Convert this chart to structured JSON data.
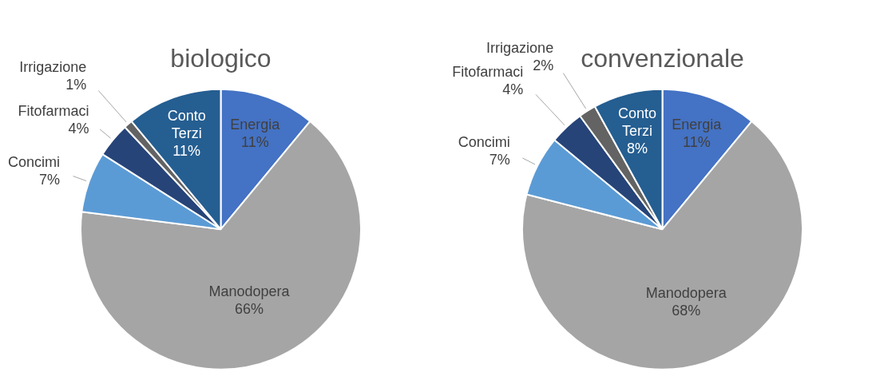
{
  "chart_data": [
    {
      "type": "pie",
      "title": "biologico",
      "categories": [
        "Energia",
        "Manodopera",
        "Concimi",
        "Fitofarmaci",
        "Irrigazione",
        "Conto Terzi"
      ],
      "values": [
        11,
        66,
        7,
        4,
        1,
        11
      ],
      "value_labels": [
        "11%",
        "66%",
        "7%",
        "4%",
        "1%",
        "11%"
      ],
      "colors": [
        "#4472c4",
        "#a5a5a5",
        "#5b9bd5",
        "#264478",
        "#636363",
        "#255e91"
      ],
      "legend": false
    },
    {
      "type": "pie",
      "title": "convenzionale",
      "categories": [
        "Energia",
        "Manodopera",
        "Concimi",
        "Fitofarmaci",
        "Irrigazione",
        "Conto Terzi"
      ],
      "values": [
        11,
        68,
        7,
        4,
        2,
        8
      ],
      "value_labels": [
        "11%",
        "68%",
        "7%",
        "4%",
        "2%",
        "8%"
      ],
      "colors": [
        "#4472c4",
        "#a5a5a5",
        "#5b9bd5",
        "#264478",
        "#636363",
        "#255e91"
      ],
      "legend": false
    }
  ]
}
